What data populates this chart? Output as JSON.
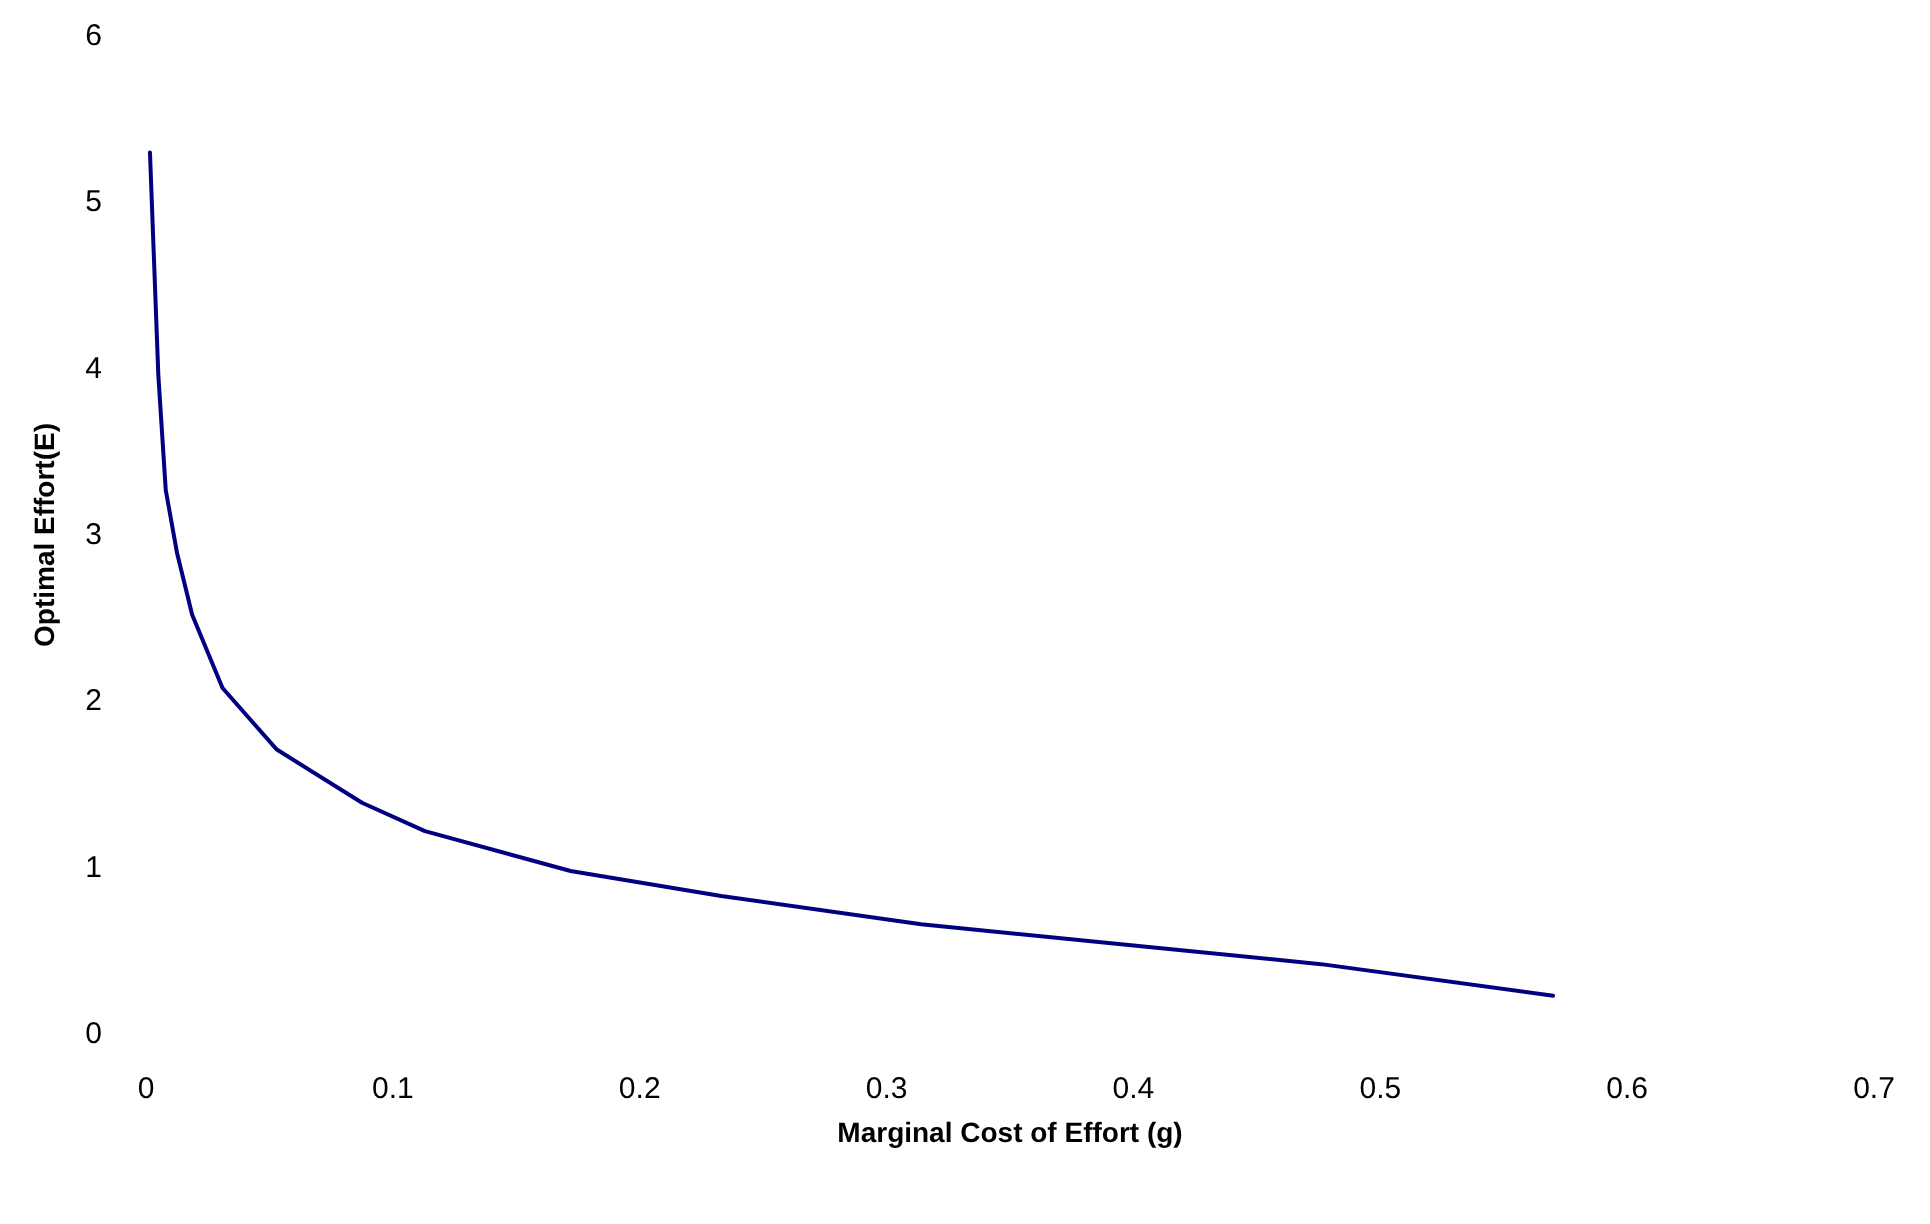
{
  "chart_data": {
    "type": "line",
    "xlabel": "Marginal Cost of Effort (g)",
    "ylabel": "Optimal Effort(E)",
    "x": [
      0.0016,
      0.005,
      0.008,
      0.0126,
      0.0187,
      0.031,
      0.053,
      0.0875,
      0.113,
      0.172,
      0.233,
      0.314,
      0.395,
      0.476,
      0.57
    ],
    "series": [
      {
        "color": "#000080",
        "values": [
          5.3,
          3.96,
          3.27,
          2.89,
          2.52,
          2.08,
          1.71,
          1.39,
          1.22,
          0.98,
          0.83,
          0.66,
          0.54,
          0.42,
          0.23
        ]
      }
    ],
    "xlim": [
      0,
      0.7
    ],
    "xticks": [
      0,
      0.1,
      0.2,
      0.3,
      0.4,
      0.5,
      0.6,
      0.7
    ],
    "ylim": [
      0,
      6
    ],
    "yticks": [
      0,
      1,
      2,
      3,
      4,
      5,
      6
    ],
    "marker": "none",
    "line_style": "solid"
  }
}
